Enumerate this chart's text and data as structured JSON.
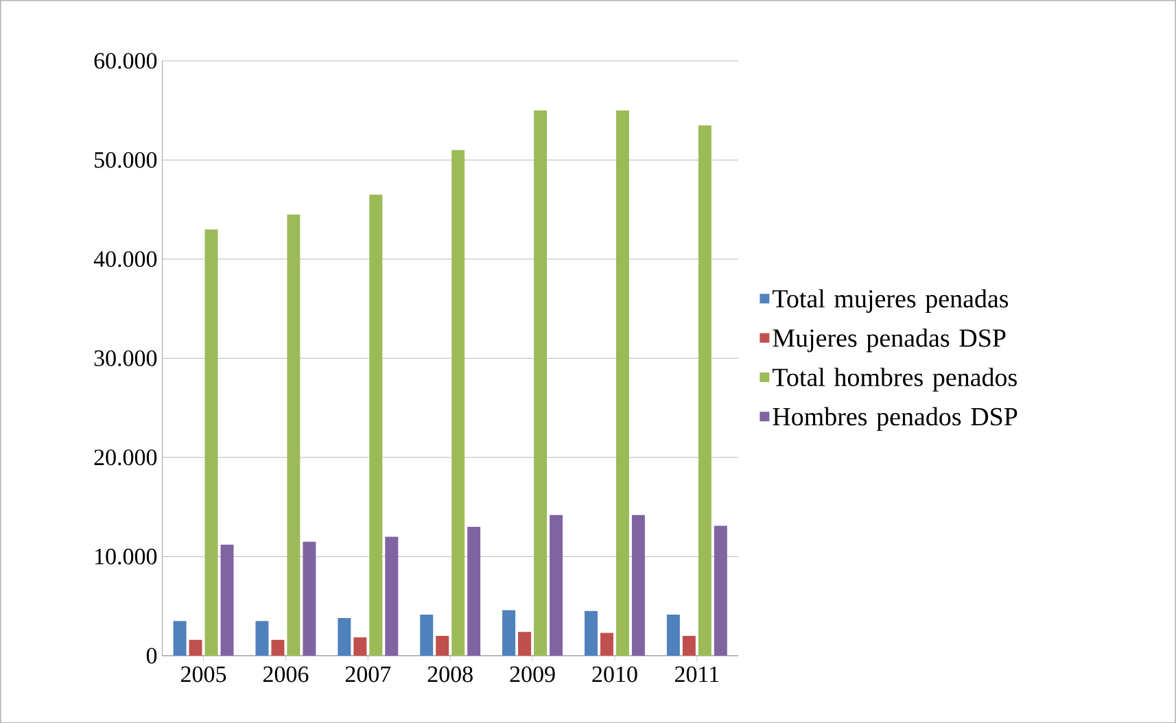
{
  "chart_data": {
    "type": "bar",
    "categories": [
      "2005",
      "2006",
      "2007",
      "2008",
      "2009",
      "2010",
      "2011"
    ],
    "series": [
      {
        "name": "Total mujeres penadas",
        "color": "#4f81bd",
        "values": [
          3500,
          3500,
          3800,
          4150,
          4600,
          4500,
          4150
        ]
      },
      {
        "name": "Mujeres penadas DSP",
        "color": "#c0504d",
        "values": [
          1600,
          1600,
          1850,
          2000,
          2400,
          2300,
          2000
        ]
      },
      {
        "name": "Total hombres penados",
        "color": "#9bbb59",
        "values": [
          43000,
          44500,
          46500,
          51000,
          55000,
          55000,
          53500
        ]
      },
      {
        "name": "Hombres penados DSP",
        "color": "#8064a2",
        "values": [
          11200,
          11500,
          12000,
          13000,
          14200,
          14200,
          13100
        ]
      }
    ],
    "ylim": [
      0,
      60000
    ],
    "yticks": [
      {
        "value": 0,
        "label": "0"
      },
      {
        "value": 10000,
        "label": "10.000"
      },
      {
        "value": 20000,
        "label": "20.000"
      },
      {
        "value": 30000,
        "label": "30.000"
      },
      {
        "value": 40000,
        "label": "40.000"
      },
      {
        "value": 50000,
        "label": "50.000"
      },
      {
        "value": 60000,
        "label": "60.000"
      }
    ],
    "grid": "y",
    "legend": "right"
  }
}
